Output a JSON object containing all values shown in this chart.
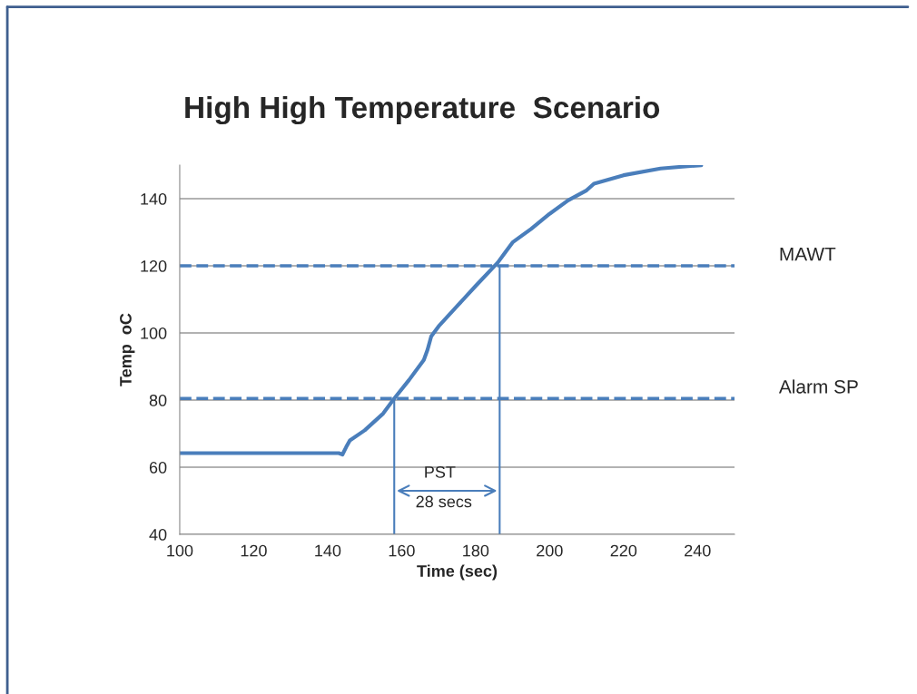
{
  "chart_data": {
    "type": "line",
    "title": "High High Temperature  Scenario",
    "xlabel": "Time (sec)",
    "ylabel": "Temp  oC",
    "xlim": [
      100,
      250
    ],
    "xticks": [
      100,
      120,
      140,
      160,
      180,
      200,
      220,
      240
    ],
    "ylim": [
      40,
      150
    ],
    "yticks": [
      40,
      60,
      80,
      100,
      120,
      140
    ],
    "grid": "y",
    "legend": false,
    "marker": "none",
    "series": [
      {
        "color": "#4a7ebb",
        "x": [
          100,
          143,
          144,
          145,
          146,
          150,
          155,
          158,
          162,
          166,
          167,
          168,
          170,
          175,
          180,
          186,
          188,
          190,
          195,
          200,
          205,
          210,
          212,
          220,
          230,
          241
        ],
        "values": [
          64.2,
          64.2,
          63.8,
          66,
          68,
          71,
          76,
          80.5,
          86,
          92,
          95,
          99,
          102,
          108,
          114,
          121,
          124,
          127,
          131,
          135.5,
          139.5,
          142.5,
          144.5,
          147,
          149,
          150
        ]
      },
      {
        "color": "#4a7ebb",
        "x": [
          158,
          158
        ],
        "values": [
          40,
          80.5
        ]
      },
      {
        "color": "#4a7ebb",
        "x": [
          186.5,
          186.5
        ],
        "values": [
          40,
          120
        ]
      }
    ],
    "ref_lines": [
      {
        "axis": "y",
        "value": 120,
        "label": "MAWT",
        "color": "#4a7ebb",
        "line_style": "dashed"
      },
      {
        "axis": "y",
        "value": 80.5,
        "label": "Alarm SP",
        "color": "#4a7ebb",
        "line_style": "dashed"
      }
    ],
    "annotations": [
      "PST",
      "28 secs"
    ]
  }
}
